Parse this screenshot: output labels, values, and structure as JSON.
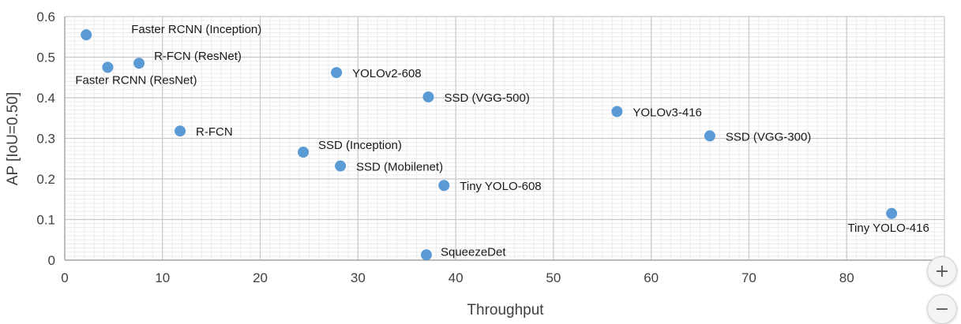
{
  "chart_data": {
    "type": "scatter",
    "xlabel": "Throughput",
    "ylabel": "AP [IoU=0.50]",
    "xlim": [
      0,
      90
    ],
    "ylim": [
      0,
      0.6
    ],
    "xticks": [
      "0",
      "10",
      "20",
      "30",
      "40",
      "50",
      "60",
      "70",
      "80",
      "90"
    ],
    "yticks": [
      "0",
      "0.1",
      "0.2",
      "0.3",
      "0.4",
      "0.5",
      "0.6"
    ],
    "grid": true,
    "legend": "none",
    "marker_color": "#5b9bd5",
    "points": [
      {
        "label": "Faster RCNN (Inception)",
        "x": 2.2,
        "y": 0.555,
        "label_pos": "right-up"
      },
      {
        "label": "Faster RCNN (ResNet)",
        "x": 4.4,
        "y": 0.475,
        "label_pos": "below"
      },
      {
        "label": "R-FCN (ResNet)",
        "x": 7.6,
        "y": 0.485,
        "label_pos": "right-up"
      },
      {
        "label": "R-FCN",
        "x": 11.8,
        "y": 0.318,
        "label_pos": "right"
      },
      {
        "label": "SSD (Inception)",
        "x": 24.4,
        "y": 0.266,
        "label_pos": "right-up"
      },
      {
        "label": "YOLOv2-608",
        "x": 27.8,
        "y": 0.462,
        "label_pos": "right"
      },
      {
        "label": "SSD (Mobilenet)",
        "x": 28.2,
        "y": 0.232,
        "label_pos": "right"
      },
      {
        "label": "SqueezeDet",
        "x": 37.0,
        "y": 0.013,
        "label_pos": "right-up"
      },
      {
        "label": "SSD (VGG-500)",
        "x": 37.2,
        "y": 0.402,
        "label_pos": "right"
      },
      {
        "label": "Tiny YOLO-608",
        "x": 38.8,
        "y": 0.184,
        "label_pos": "right"
      },
      {
        "label": "YOLOv3-416",
        "x": 56.5,
        "y": 0.366,
        "label_pos": "right"
      },
      {
        "label": "SSD (VGG-300)",
        "x": 66.0,
        "y": 0.306,
        "label_pos": "right"
      },
      {
        "label": "Tiny YOLO-416",
        "x": 84.6,
        "y": 0.115,
        "label_pos": "below-left"
      }
    ]
  },
  "controls": {
    "zoom_in_label": "+",
    "zoom_out_label": "−"
  }
}
